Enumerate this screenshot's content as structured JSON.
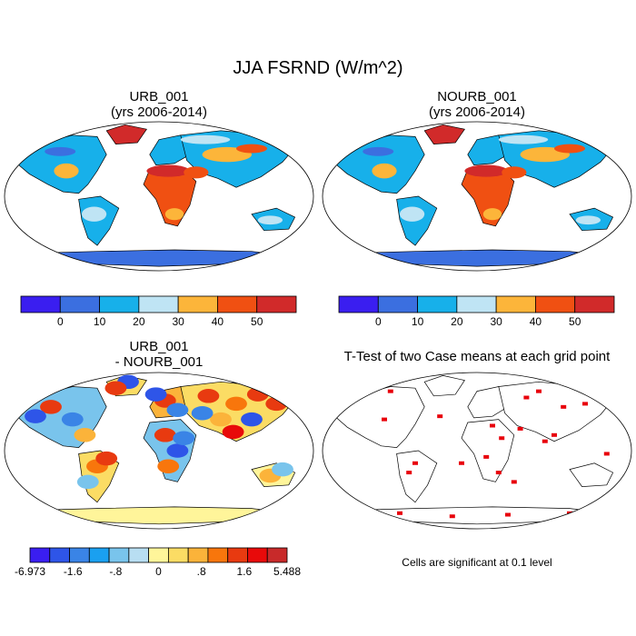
{
  "title": "JJA FSRND (W/m^2)",
  "note": "Cells are significant at 0.1 level",
  "chart_data": [
    {
      "type": "heatmap",
      "panel": "top-left",
      "title_line1": "URB_001",
      "title_line2": "(yrs 2006-2014)",
      "colorbar": {
        "tick_labels": [
          "0",
          "10",
          "20",
          "30",
          "40",
          "50"
        ],
        "colors": [
          "#3a1ef0",
          "#3b6fe0",
          "#17b0ea",
          "#bfe4f4",
          "#fcb53a",
          "#f05012",
          "#d12a2a"
        ]
      }
    },
    {
      "type": "heatmap",
      "panel": "top-right",
      "title_line1": "NOURB_001",
      "title_line2": "(yrs 2006-2014)",
      "colorbar": {
        "tick_labels": [
          "0",
          "10",
          "20",
          "30",
          "40",
          "50"
        ],
        "colors": [
          "#3a1ef0",
          "#3b6fe0",
          "#17b0ea",
          "#bfe4f4",
          "#fcb53a",
          "#f05012",
          "#d12a2a"
        ]
      }
    },
    {
      "type": "heatmap",
      "panel": "bottom-left",
      "title_line1": "URB_001",
      "title_line2": "- NOURB_001",
      "colorbar": {
        "tick_labels": [
          "-6.973",
          "-1.6",
          "-.8",
          "0",
          ".8",
          "1.6",
          "5.488"
        ],
        "colors": [
          "#3a1ef0",
          "#2e55e8",
          "#3a84e6",
          "#1aa0f0",
          "#79c4ec",
          "#b8def2",
          "#fff59a",
          "#fbdc64",
          "#fbb33a",
          "#f8760c",
          "#e83a10",
          "#e80a0a",
          "#c82a2a"
        ]
      }
    },
    {
      "type": "heatmap",
      "panel": "bottom-right",
      "title_line1": "T-Test of two Case means at each grid point",
      "significance_color": "#e8000b"
    }
  ]
}
